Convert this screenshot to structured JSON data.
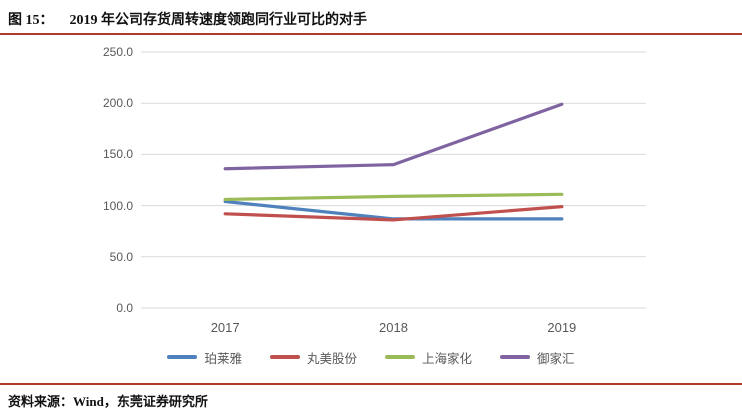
{
  "page": {
    "title": {
      "figure_label": "图 15：",
      "title_text": "2019 年公司存货周转速度领跑同行业可比的对手"
    },
    "footer": {
      "source_text": "资料来源：Wind，东莞证券研究所"
    },
    "divider_color": "#AF3B2A"
  },
  "chart_data": {
    "type": "line",
    "title": "2019 年公司存货周转速度领跑同行业可比的对手",
    "categories": [
      "2017",
      "2018",
      "2019"
    ],
    "series": [
      {
        "name": "珀莱雅",
        "color": "#4F81BD",
        "values": [
          104,
          87,
          87
        ]
      },
      {
        "name": "丸美股份",
        "color": "#C0504D",
        "values": [
          92,
          86,
          99
        ]
      },
      {
        "name": "上海家化",
        "color": "#9BBB59",
        "values": [
          106,
          109,
          111
        ]
      },
      {
        "name": "御家汇",
        "color": "#8064A2",
        "values": [
          136,
          140,
          199
        ]
      }
    ],
    "xlabel": "",
    "ylabel": "",
    "ylim": [
      0,
      250
    ],
    "y_ticks": [
      "0.0",
      "50.0",
      "100.0",
      "150.0",
      "200.0",
      "250.0"
    ],
    "y_tick_step": 50,
    "grid": true,
    "grid_color": "#D9D9D9",
    "axis_text_color": "#595959",
    "legend_position": "bottom"
  }
}
